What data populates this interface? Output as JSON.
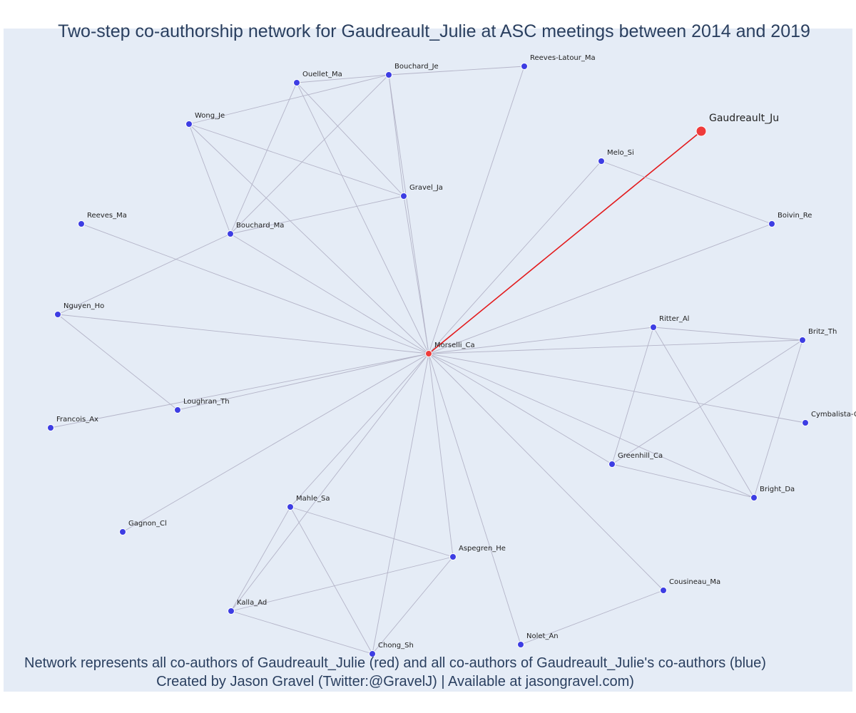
{
  "title": "Two-step co-authorship network for Gaudreault_Julie at ASC meetings between 2014 and 2019",
  "caption": {
    "line1": "Network represents all co-authors of Gaudreault_Julie (red) and all co-authors of Gaudreault_Julie's co-authors (blue)",
    "line2": "Created by Jason Gravel (Twitter:@GravelJ) | Available at jasongravel.com)"
  },
  "colors": {
    "background": "#e5ecf6",
    "ego_node": "#ef3b3b",
    "coauthor_node": "#3d3de3",
    "ego_edge": "#e31a1c",
    "edge": "#b4b4c8",
    "text": "#2a3f5f"
  },
  "nodes": [
    {
      "id": "Gaudreault_Ju",
      "label": "Gaudreault_Ju",
      "role": "ego"
    },
    {
      "id": "Morselli_Ca",
      "label": "Morselli_Ca",
      "role": "coauthor"
    },
    {
      "id": "Reeves-Latour_Ma",
      "label": "Reeves-Latour_Ma",
      "role": "second"
    },
    {
      "id": "Bouchard_Je",
      "label": "Bouchard_Je",
      "role": "second"
    },
    {
      "id": "Ouellet_Ma",
      "label": "Ouellet_Ma",
      "role": "second"
    },
    {
      "id": "Wong_Je",
      "label": "Wong_Je",
      "role": "second"
    },
    {
      "id": "Melo_Si",
      "label": "Melo_Si",
      "role": "second"
    },
    {
      "id": "Gravel_Ja",
      "label": "Gravel_Ja",
      "role": "second"
    },
    {
      "id": "Reeves_Ma",
      "label": "Reeves_Ma",
      "role": "second"
    },
    {
      "id": "Bouchard_Ma",
      "label": "Bouchard_Ma",
      "role": "second"
    },
    {
      "id": "Boivin_Re",
      "label": "Boivin_Re",
      "role": "second"
    },
    {
      "id": "Nguyen_Ho",
      "label": "Nguyen_Ho",
      "role": "second"
    },
    {
      "id": "Ritter_Al",
      "label": "Ritter_Al",
      "role": "second"
    },
    {
      "id": "Britz_Th",
      "label": "Britz_Th",
      "role": "second"
    },
    {
      "id": "Loughran_Th",
      "label": "Loughran_Th",
      "role": "second"
    },
    {
      "id": "Francois_Ax",
      "label": "Francois_Ax",
      "role": "second"
    },
    {
      "id": "Cymbalista-G",
      "label": "Cymbalista-G",
      "role": "second"
    },
    {
      "id": "Greenhill_Ca",
      "label": "Greenhill_Ca",
      "role": "second"
    },
    {
      "id": "Bright_Da",
      "label": "Bright_Da",
      "role": "second"
    },
    {
      "id": "Mahle_Sa",
      "label": "Mahle_Sa",
      "role": "second"
    },
    {
      "id": "Gagnon_Cl",
      "label": "Gagnon_Cl",
      "role": "second"
    },
    {
      "id": "Aspegren_He",
      "label": "Aspegren_He",
      "role": "second"
    },
    {
      "id": "Cousineau_Ma",
      "label": "Cousineau_Ma",
      "role": "second"
    },
    {
      "id": "Kalla_Ad",
      "label": "Kalla_Ad",
      "role": "second"
    },
    {
      "id": "Nolet_An",
      "label": "Nolet_An",
      "role": "second"
    },
    {
      "id": "Chong_Sh",
      "label": "Chong_Sh",
      "role": "second"
    }
  ],
  "edges": [
    [
      "Gaudreault_Ju",
      "Morselli_Ca"
    ],
    [
      "Morselli_Ca",
      "Reeves-Latour_Ma"
    ],
    [
      "Morselli_Ca",
      "Bouchard_Je"
    ],
    [
      "Morselli_Ca",
      "Ouellet_Ma"
    ],
    [
      "Morselli_Ca",
      "Wong_Je"
    ],
    [
      "Morselli_Ca",
      "Melo_Si"
    ],
    [
      "Morselli_Ca",
      "Gravel_Ja"
    ],
    [
      "Morselli_Ca",
      "Reeves_Ma"
    ],
    [
      "Morselli_Ca",
      "Bouchard_Ma"
    ],
    [
      "Morselli_Ca",
      "Boivin_Re"
    ],
    [
      "Morselli_Ca",
      "Nguyen_Ho"
    ],
    [
      "Morselli_Ca",
      "Ritter_Al"
    ],
    [
      "Morselli_Ca",
      "Britz_Th"
    ],
    [
      "Morselli_Ca",
      "Loughran_Th"
    ],
    [
      "Morselli_Ca",
      "Francois_Ax"
    ],
    [
      "Morselli_Ca",
      "Cymbalista-G"
    ],
    [
      "Morselli_Ca",
      "Greenhill_Ca"
    ],
    [
      "Morselli_Ca",
      "Bright_Da"
    ],
    [
      "Morselli_Ca",
      "Mahle_Sa"
    ],
    [
      "Morselli_Ca",
      "Gagnon_Cl"
    ],
    [
      "Morselli_Ca",
      "Aspegren_He"
    ],
    [
      "Morselli_Ca",
      "Cousineau_Ma"
    ],
    [
      "Morselli_Ca",
      "Kalla_Ad"
    ],
    [
      "Morselli_Ca",
      "Nolet_An"
    ],
    [
      "Morselli_Ca",
      "Chong_Sh"
    ],
    [
      "Bouchard_Je",
      "Reeves-Latour_Ma"
    ],
    [
      "Bouchard_Je",
      "Wong_Je"
    ],
    [
      "Bouchard_Je",
      "Ouellet_Ma"
    ],
    [
      "Bouchard_Je",
      "Gravel_Ja"
    ],
    [
      "Bouchard_Je",
      "Bouchard_Ma"
    ],
    [
      "Ouellet_Ma",
      "Gravel_Ja"
    ],
    [
      "Ouellet_Ma",
      "Bouchard_Ma"
    ],
    [
      "Wong_Je",
      "Gravel_Ja"
    ],
    [
      "Wong_Je",
      "Bouchard_Ma"
    ],
    [
      "Gravel_Ja",
      "Bouchard_Ma"
    ],
    [
      "Bouchard_Ma",
      "Nguyen_Ho"
    ],
    [
      "Melo_Si",
      "Boivin_Re"
    ],
    [
      "Nguyen_Ho",
      "Loughran_Th"
    ],
    [
      "Ritter_Al",
      "Britz_Th"
    ],
    [
      "Ritter_Al",
      "Greenhill_Ca"
    ],
    [
      "Ritter_Al",
      "Bright_Da"
    ],
    [
      "Britz_Th",
      "Greenhill_Ca"
    ],
    [
      "Britz_Th",
      "Bright_Da"
    ],
    [
      "Greenhill_Ca",
      "Bright_Da"
    ],
    [
      "Mahle_Sa",
      "Aspegren_He"
    ],
    [
      "Mahle_Sa",
      "Kalla_Ad"
    ],
    [
      "Mahle_Sa",
      "Chong_Sh"
    ],
    [
      "Aspegren_He",
      "Kalla_Ad"
    ],
    [
      "Aspegren_He",
      "Chong_Sh"
    ],
    [
      "Kalla_Ad",
      "Chong_Sh"
    ],
    [
      "Cousineau_Ma",
      "Nolet_An"
    ]
  ]
}
